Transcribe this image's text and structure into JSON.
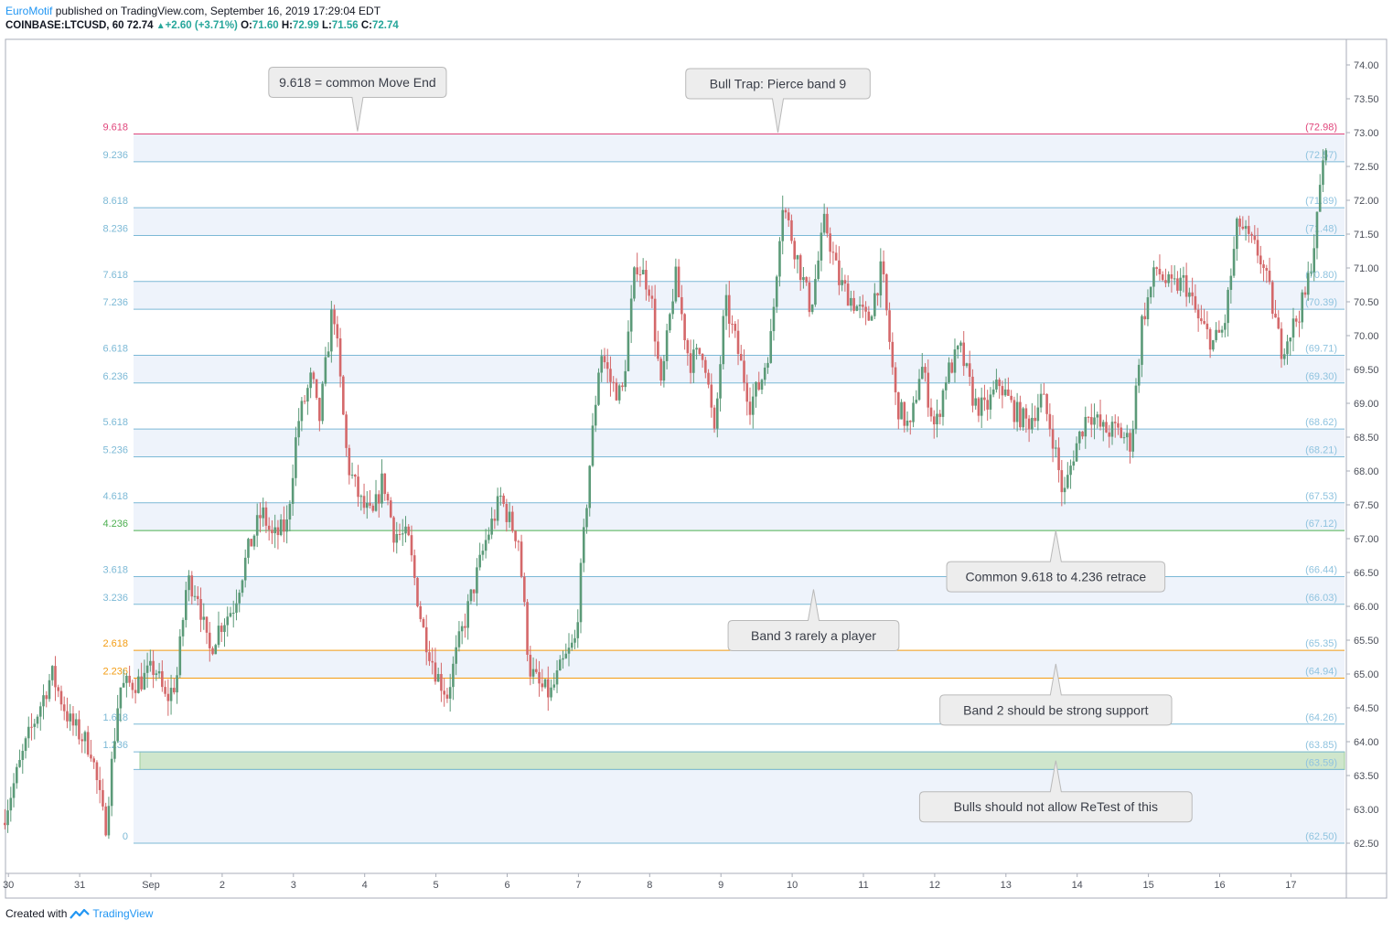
{
  "header": {
    "author": "EuroMotif",
    "published": "published on TradingView.com, September 16, 2019 17:29:04 EDT",
    "symbol": "COINBASE:LTCUSD, 60",
    "last": "72.74",
    "change": "+2.60 (+3.71%)",
    "o_label": "O:",
    "o_val": "71.60",
    "h_label": "H:",
    "h_val": "72.99",
    "l_label": "L:",
    "l_val": "71.56",
    "c_label": "C:",
    "c_val": "72.74"
  },
  "footer": {
    "created": "Created with",
    "brand": "TradingView"
  },
  "colors": {
    "up": "#5b9a78",
    "down": "#d4686a",
    "fib_line": "#7cb9d6",
    "band_fill": "#eef3fb",
    "zone": "#cfe6cc",
    "accent": "#2196f3"
  },
  "chart_data": {
    "type": "candlestick",
    "title": "",
    "ylim": [
      62.3,
      74.3
    ],
    "yticks": [
      "74.00",
      "73.50",
      "73.00",
      "72.50",
      "72.00",
      "71.50",
      "71.00",
      "70.50",
      "70.00",
      "69.50",
      "69.00",
      "68.50",
      "68.00",
      "67.50",
      "67.00",
      "66.50",
      "66.00",
      "65.50",
      "65.00",
      "64.50",
      "64.00",
      "63.50",
      "63.00",
      "62.50"
    ],
    "xticks": [
      {
        "label": "30",
        "t": -1.9
      },
      {
        "label": "31",
        "t": -0.9
      },
      {
        "label": "Sep",
        "t": 0.1
      },
      {
        "label": "2",
        "t": 1.1
      },
      {
        "label": "3",
        "t": 2.1
      },
      {
        "label": "4",
        "t": 3.1
      },
      {
        "label": "5",
        "t": 4.1
      },
      {
        "label": "6",
        "t": 5.1
      },
      {
        "label": "7",
        "t": 6.1
      },
      {
        "label": "8",
        "t": 7.1
      },
      {
        "label": "9",
        "t": 8.1
      },
      {
        "label": "10",
        "t": 9.1
      },
      {
        "label": "11",
        "t": 10.1
      },
      {
        "label": "12",
        "t": 11.1
      },
      {
        "label": "13",
        "t": 12.1
      },
      {
        "label": "14",
        "t": 13.1
      },
      {
        "label": "15",
        "t": 14.1
      },
      {
        "label": "16",
        "t": 15.1
      },
      {
        "label": "17",
        "t": 16.1
      }
    ],
    "fib_levels": [
      {
        "ratio": "9.618",
        "price": "(72.98)",
        "value": 72.98,
        "color": "#e0457b"
      },
      {
        "ratio": "9.236",
        "price": "(72.57)",
        "value": 72.57,
        "color": "#7cb9d6"
      },
      {
        "ratio": "8.618",
        "price": "(71.89)",
        "value": 71.89,
        "color": "#7cb9d6"
      },
      {
        "ratio": "8.236",
        "price": "(71.48)",
        "value": 71.48,
        "color": "#7cb9d6"
      },
      {
        "ratio": "7.618",
        "price": "(70.80)",
        "value": 70.8,
        "color": "#7cb9d6"
      },
      {
        "ratio": "7.236",
        "price": "(70.39)",
        "value": 70.39,
        "color": "#7cb9d6"
      },
      {
        "ratio": "6.618",
        "price": "(69.71)",
        "value": 69.71,
        "color": "#7cb9d6"
      },
      {
        "ratio": "6.236",
        "price": "(69.30)",
        "value": 69.3,
        "color": "#7cb9d6"
      },
      {
        "ratio": "5.618",
        "price": "(68.62)",
        "value": 68.62,
        "color": "#7cb9d6"
      },
      {
        "ratio": "5.236",
        "price": "(68.21)",
        "value": 68.21,
        "color": "#7cb9d6"
      },
      {
        "ratio": "4.618",
        "price": "(67.53)",
        "value": 67.53,
        "color": "#7cb9d6"
      },
      {
        "ratio": "4.236",
        "price": "(67.12)",
        "value": 67.12,
        "color": "#4caf50"
      },
      {
        "ratio": "3.618",
        "price": "(66.44)",
        "value": 66.44,
        "color": "#7cb9d6"
      },
      {
        "ratio": "3.236",
        "price": "(66.03)",
        "value": 66.03,
        "color": "#7cb9d6"
      },
      {
        "ratio": "2.618",
        "price": "(65.35)",
        "value": 65.35,
        "color": "#f39c12"
      },
      {
        "ratio": "2.236",
        "price": "(64.94)",
        "value": 64.94,
        "color": "#f39c12"
      },
      {
        "ratio": "1.618",
        "price": "(64.26)",
        "value": 64.26,
        "color": "#7cb9d6"
      },
      {
        "ratio": "1.236",
        "price": "(63.85)",
        "value": 63.85,
        "color": "#7cb9d6"
      },
      {
        "ratio": "",
        "price": "(63.59)",
        "value": 63.59,
        "color": "#7cb9d6"
      },
      {
        "ratio": "0",
        "price": "(62.50)",
        "value": 62.5,
        "color": "#7cb9d6"
      }
    ],
    "zone": {
      "from": 63.59,
      "to": 63.85
    },
    "annotations": [
      {
        "text": "9.618 = common Move End",
        "t": 3.0,
        "y": 73.02,
        "side": "above"
      },
      {
        "text": "Bull Trap: Pierce band 9",
        "t": 8.9,
        "y": 73.0,
        "side": "above"
      },
      {
        "text": "Common 9.618 to 4.236 retrace",
        "t": 12.8,
        "y": 67.12,
        "side": "below"
      },
      {
        "text": "Band 3 rarely a player",
        "t": 9.4,
        "y": 66.25,
        "side": "below"
      },
      {
        "text": "Band 2 should be strong support",
        "t": 12.8,
        "y": 65.15,
        "side": "below"
      },
      {
        "text": "Bulls should not allow ReTest of this",
        "t": 12.8,
        "y": 63.72,
        "side": "below"
      }
    ],
    "price_path": [
      [
        -1.95,
        62.8
      ],
      [
        -1.6,
        64.0
      ],
      [
        -1.25,
        65.0
      ],
      [
        -1.0,
        64.3
      ],
      [
        -0.7,
        63.9
      ],
      [
        -0.5,
        62.7
      ],
      [
        -0.3,
        64.8
      ],
      [
        0.0,
        64.9
      ],
      [
        0.2,
        65.1
      ],
      [
        0.35,
        64.6
      ],
      [
        0.5,
        64.9
      ],
      [
        0.65,
        66.4
      ],
      [
        0.8,
        66.2
      ],
      [
        0.95,
        65.3
      ],
      [
        1.1,
        65.7
      ],
      [
        1.3,
        66.0
      ],
      [
        1.5,
        66.8
      ],
      [
        1.7,
        67.4
      ],
      [
        1.85,
        67.0
      ],
      [
        2.05,
        67.2
      ],
      [
        2.2,
        68.7
      ],
      [
        2.4,
        69.4
      ],
      [
        2.5,
        68.7
      ],
      [
        2.7,
        70.5
      ],
      [
        2.9,
        68.1
      ],
      [
        3.1,
        67.5
      ],
      [
        3.25,
        67.3
      ],
      [
        3.4,
        67.9
      ],
      [
        3.55,
        67.1
      ],
      [
        3.75,
        67.0
      ],
      [
        3.95,
        65.7
      ],
      [
        4.15,
        65.0
      ],
      [
        4.3,
        64.7
      ],
      [
        4.45,
        65.4
      ],
      [
        4.65,
        66.2
      ],
      [
        4.85,
        67.0
      ],
      [
        5.05,
        67.6
      ],
      [
        5.2,
        67.2
      ],
      [
        5.3,
        67.0
      ],
      [
        5.45,
        65.1
      ],
      [
        5.6,
        64.8
      ],
      [
        5.75,
        64.7
      ],
      [
        5.9,
        65.1
      ],
      [
        6.1,
        65.5
      ],
      [
        6.3,
        68.1
      ],
      [
        6.45,
        69.8
      ],
      [
        6.6,
        69.3
      ],
      [
        6.75,
        69.1
      ],
      [
        6.95,
        71.1
      ],
      [
        7.15,
        70.7
      ],
      [
        7.3,
        69.2
      ],
      [
        7.5,
        70.9
      ],
      [
        7.7,
        69.6
      ],
      [
        7.9,
        69.8
      ],
      [
        8.05,
        68.5
      ],
      [
        8.2,
        70.5
      ],
      [
        8.35,
        69.9
      ],
      [
        8.55,
        69.0
      ],
      [
        8.7,
        69.3
      ],
      [
        8.85,
        70.0
      ],
      [
        9.0,
        72.0
      ],
      [
        9.2,
        71.2
      ],
      [
        9.4,
        70.4
      ],
      [
        9.6,
        71.7
      ],
      [
        9.8,
        70.8
      ],
      [
        10.0,
        70.5
      ],
      [
        10.2,
        70.2
      ],
      [
        10.4,
        71.0
      ],
      [
        10.6,
        69.0
      ],
      [
        10.8,
        68.6
      ],
      [
        10.95,
        69.6
      ],
      [
        11.15,
        68.6
      ],
      [
        11.3,
        69.4
      ],
      [
        11.5,
        69.8
      ],
      [
        11.7,
        69.0
      ],
      [
        11.85,
        68.9
      ],
      [
        12.05,
        69.3
      ],
      [
        12.25,
        68.9
      ],
      [
        12.45,
        68.7
      ],
      [
        12.65,
        69.1
      ],
      [
        12.8,
        68.5
      ],
      [
        12.95,
        67.6
      ],
      [
        13.1,
        68.3
      ],
      [
        13.3,
        68.9
      ],
      [
        13.5,
        68.6
      ],
      [
        13.7,
        68.6
      ],
      [
        13.9,
        68.4
      ],
      [
        14.05,
        70.2
      ],
      [
        14.25,
        71.0
      ],
      [
        14.45,
        70.7
      ],
      [
        14.65,
        70.8
      ],
      [
        14.85,
        70.2
      ],
      [
        15.05,
        69.9
      ],
      [
        15.2,
        70.1
      ],
      [
        15.4,
        71.7
      ],
      [
        15.55,
        71.4
      ],
      [
        15.7,
        71.2
      ],
      [
        15.85,
        70.6
      ],
      [
        16.0,
        69.8
      ],
      [
        16.2,
        70.2
      ],
      [
        16.35,
        70.6
      ],
      [
        16.5,
        71.6
      ],
      [
        16.6,
        72.74
      ]
    ]
  }
}
